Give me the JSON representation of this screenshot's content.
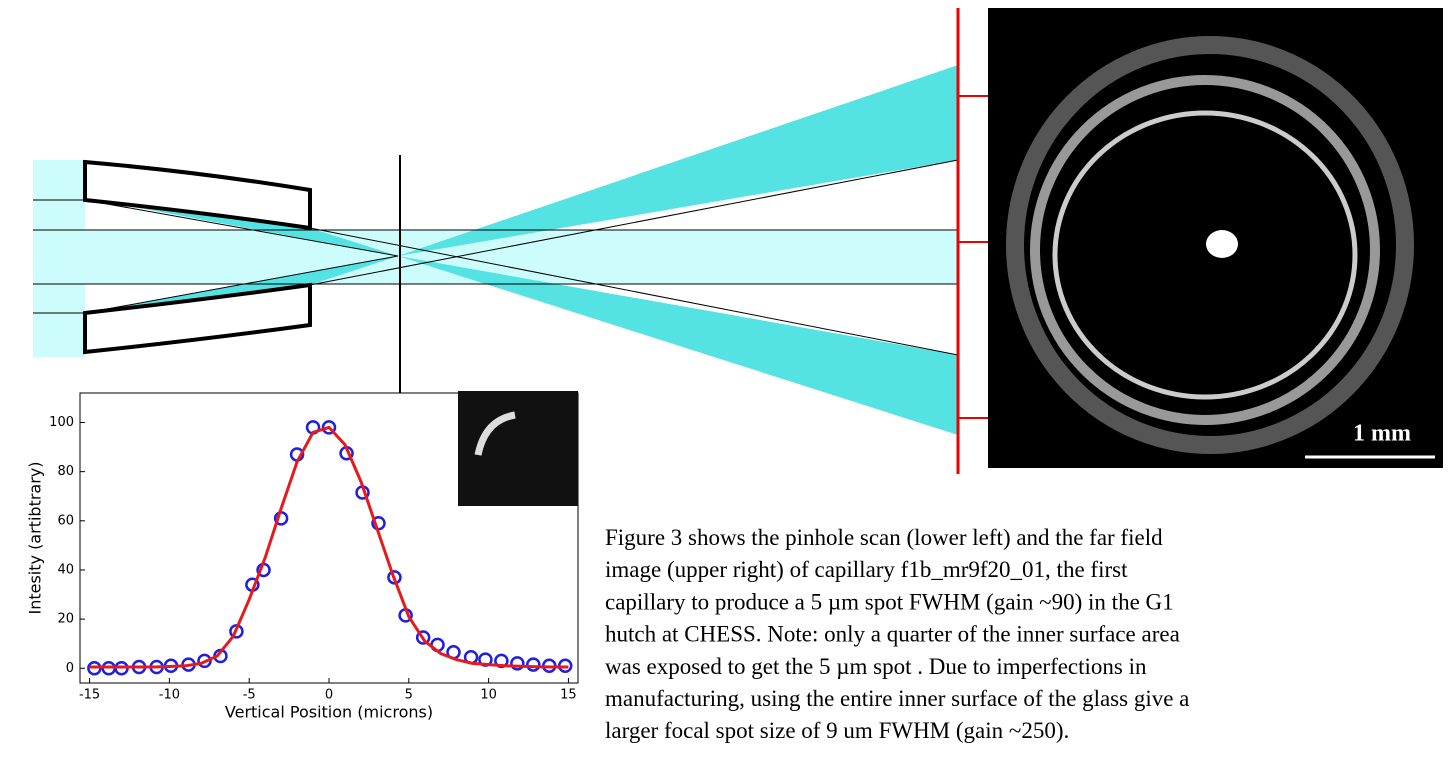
{
  "chart_data": {
    "type": "line",
    "xlabel": "Vertical Position (microns)",
    "ylabel": "Intesity (artibtrary)",
    "xlim": [
      -15.6,
      15.6
    ],
    "ylim": [
      -6,
      112
    ],
    "xticks": [
      -15,
      -10,
      -5,
      0,
      5,
      10,
      15
    ],
    "yticks": [
      0,
      20,
      40,
      60,
      80,
      100
    ],
    "series": [
      {
        "style": "markers",
        "color": "#1f1fe0",
        "x": [
          -14.7,
          -13.8,
          -13,
          -11.9,
          -10.8,
          -9.9,
          -8.8,
          -7.8,
          -6.8,
          -5.8,
          -4.8,
          -4.1,
          -3,
          -2,
          -1,
          0,
          1.1,
          2.1,
          3.1,
          4.1,
          4.8,
          5.9,
          6.8,
          7.8,
          8.9,
          9.8,
          10.8,
          11.8,
          12.8,
          13.8,
          14.8
        ],
        "values": [
          0,
          0,
          0,
          0.5,
          0.5,
          1,
          1.5,
          3,
          5,
          15,
          34,
          40,
          61,
          87,
          98,
          98,
          87.5,
          71.5,
          59,
          37,
          21.5,
          12.5,
          9.5,
          6.5,
          4.5,
          3.5,
          3,
          2,
          1.5,
          1,
          1
        ]
      },
      {
        "style": "line",
        "color": "#e8191b",
        "x": [
          -15,
          -14,
          -13,
          -12,
          -11,
          -10,
          -9,
          -8,
          -7,
          -6,
          -5,
          -4,
          -3,
          -2,
          -1,
          0,
          1,
          2,
          3,
          4,
          5,
          6,
          7,
          8,
          9,
          10,
          11,
          12,
          13,
          14,
          15
        ],
        "values": [
          0.5,
          0.5,
          0.5,
          0.5,
          0.5,
          0.7,
          1,
          2,
          5,
          13,
          28,
          45,
          65,
          84,
          96,
          98,
          91,
          76,
          57,
          38,
          21,
          11,
          6,
          3.5,
          2,
          1.5,
          1,
          0.8,
          0.6,
          0.5,
          0.5
        ]
      }
    ]
  },
  "far_field": {
    "scale_label": "1 mm"
  },
  "paragraph": {
    "lines": [
      "Figure 3 shows the pinhole scan (lower left) and the far field",
      "image (upper right) of capillary f1b_mr9f20_01, the first",
      "capillary to produce a 5 µm spot FWHM (gain ~90) in the G1",
      "hutch at CHESS.  Note: only a quarter of the inner surface area",
      "was exposed to get the 5 µm spot .  Due to imperfections in",
      "manufacturing, using the entire inner surface of the glass give a",
      "larger focal spot size of 9 um FWHM (gain ~250)."
    ]
  }
}
